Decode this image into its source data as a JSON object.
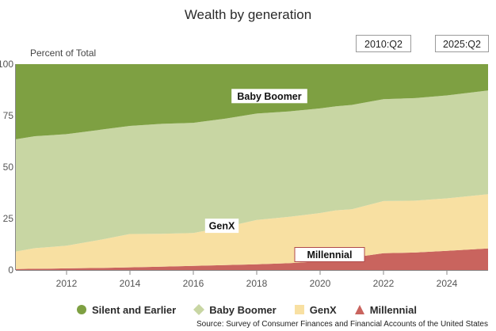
{
  "title": "Wealth by generation",
  "range": {
    "start": "2010:Q2",
    "end": "2025:Q2"
  },
  "source": "Source: Survey of Consumer Finances and Financial Accounts of the United States",
  "colors": {
    "silent": "#7ea042",
    "boomer": "#c8d6a3",
    "genx": "#f8e0a2",
    "millennial": "#c9645e",
    "axis": "#888888",
    "tick_text": "#555555"
  },
  "chart_data": {
    "type": "area",
    "stacked": true,
    "ylabel": "Percent of Total",
    "ylim": [
      0,
      100
    ],
    "yticks": [
      0,
      25,
      50,
      75,
      100
    ],
    "xlim": [
      2010.4,
      2025.3
    ],
    "xticks": [
      2012,
      2014,
      2016,
      2018,
      2020,
      2022,
      2024
    ],
    "x": [
      2010.4,
      2011.0,
      2011.5,
      2012.0,
      2013.0,
      2014.0,
      2015.0,
      2016.0,
      2017.0,
      2018.0,
      2019.0,
      2020.0,
      2020.5,
      2021.0,
      2022.0,
      2023.0,
      2024.0,
      2025.3
    ],
    "series": [
      {
        "key": "millennial",
        "name": "Millennial",
        "values": [
          0.5,
          0.6,
          0.7,
          0.8,
          1.0,
          1.3,
          1.6,
          2.0,
          2.4,
          2.8,
          3.3,
          4.2,
          5.0,
          6.0,
          8.2,
          8.5,
          9.3,
          10.5
        ]
      },
      {
        "key": "genx",
        "name": "GenX",
        "values": [
          8.5,
          10.0,
          10.5,
          11.0,
          13.5,
          16.2,
          16.0,
          16.0,
          18.5,
          21.5,
          22.5,
          23.5,
          24.0,
          23.5,
          25.3,
          25.2,
          25.5,
          26.3
        ]
      },
      {
        "key": "boomer",
        "name": "Baby Boomer",
        "values": [
          54.5,
          54.4,
          54.3,
          54.2,
          53.5,
          52.5,
          53.4,
          53.5,
          52.6,
          51.7,
          51.2,
          50.8,
          50.5,
          50.7,
          49.5,
          49.8,
          50.0,
          50.4
        ]
      },
      {
        "key": "silent",
        "name": "Silent and Earlier",
        "values": [
          36.5,
          35.0,
          34.5,
          34.0,
          32.0,
          30.0,
          29.0,
          28.5,
          26.5,
          24.0,
          23.0,
          21.5,
          20.5,
          19.8,
          17.0,
          16.5,
          15.2,
          12.8
        ]
      }
    ],
    "annotations": [
      {
        "series": "boomer",
        "text": "Baby Boomer",
        "x": 2018.4,
        "y": 84.5
      },
      {
        "series": "genx",
        "text": "GenX",
        "x": 2016.9,
        "y": 21.5
      },
      {
        "series": "millennial",
        "text": "Millennial",
        "x": 2020.3,
        "y": 7.5
      }
    ],
    "legend": {
      "position": "bottom",
      "items": [
        {
          "key": "silent",
          "label": "Silent and Earlier",
          "marker": "circle"
        },
        {
          "key": "boomer",
          "label": "Baby Boomer",
          "marker": "diamond"
        },
        {
          "key": "genx",
          "label": "GenX",
          "marker": "square"
        },
        {
          "key": "millennial",
          "label": "Millennial",
          "marker": "triangle"
        }
      ]
    }
  }
}
